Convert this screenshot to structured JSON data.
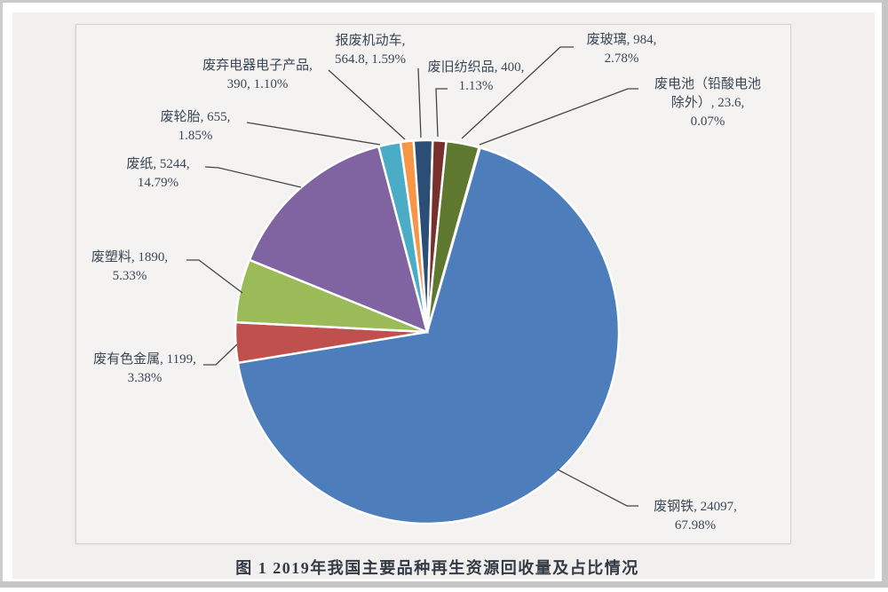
{
  "page": {
    "caption": "图 1  2019年我国主要品种再生资源回收量及占比情况"
  },
  "chart_data": {
    "type": "pie",
    "title": "图 1  2019年我国主要品种再生资源回收量及占比情况",
    "legend_position": "none",
    "grid": false,
    "start_angle_deg": 16,
    "slice_border_color": "#ffffff",
    "label_text_color": "#3b4757",
    "leader_line_color": "#454545",
    "slices": [
      {
        "id": "scrap-steel",
        "name": "废钢铁",
        "value": 24097,
        "pct": 67.98,
        "color": "#4D7EBB",
        "lines": [
          "废钢铁, 24097,",
          "67.98%"
        ]
      },
      {
        "id": "nonferrous-metal",
        "name": "废有色金属",
        "value": 1199,
        "pct": 3.38,
        "color": "#C0504D",
        "lines": [
          "废有色金属, 1199,",
          "3.38%"
        ]
      },
      {
        "id": "plastic",
        "name": "废塑料",
        "value": 1890,
        "pct": 5.33,
        "color": "#9BBB59",
        "lines": [
          "废塑料, 1890,",
          "5.33%"
        ]
      },
      {
        "id": "paper",
        "name": "废纸",
        "value": 5244,
        "pct": 14.79,
        "color": "#8064A2",
        "lines": [
          "废纸, 5244,",
          "14.79%"
        ]
      },
      {
        "id": "tires",
        "name": "废轮胎",
        "value": 655,
        "pct": 1.85,
        "color": "#4BACC6",
        "lines": [
          "废轮胎, 655,",
          "1.85%"
        ]
      },
      {
        "id": "e-waste",
        "name": "废弃电器电子产品",
        "value": 390,
        "pct": 1.1,
        "color": "#F79646",
        "lines": [
          "废弃电器电子产品,",
          "390, 1.10%"
        ]
      },
      {
        "id": "scrapped-vehicles",
        "name": "报废机动车",
        "value": 564.8,
        "pct": 1.59,
        "color": "#2C4D75",
        "lines": [
          "报废机动车,",
          "564.8, 1.59%"
        ]
      },
      {
        "id": "textiles",
        "name": "废旧纺织品",
        "value": 400,
        "pct": 1.13,
        "color": "#77302C",
        "lines": [
          "废旧纺织品, 400,",
          "1.13%"
        ]
      },
      {
        "id": "glass",
        "name": "废玻璃",
        "value": 984,
        "pct": 2.78,
        "color": "#5F7830",
        "lines": [
          "废玻璃, 984,",
          "2.78%"
        ]
      },
      {
        "id": "batteries-excl-lead-acid",
        "name": "废电池（铅酸电池除外）",
        "value": 23.6,
        "pct": 0.07,
        "color": "#4D3B62",
        "lines": [
          "废电池（铅酸电池",
          "除外）, 23.6,",
          "0.07%"
        ]
      }
    ]
  }
}
